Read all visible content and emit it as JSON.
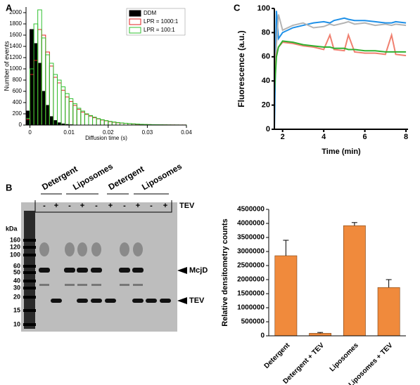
{
  "panels": [
    "A",
    "B",
    "C"
  ],
  "gel": {
    "groups": [
      "Detergent",
      "Liposomes",
      "Detergent",
      "Liposomes"
    ],
    "lanes": [
      "-",
      "+",
      "-",
      "+",
      "-",
      "+",
      "-",
      "+",
      "-",
      "+"
    ],
    "enzyme": "TEV",
    "unit": "kDa",
    "ladder": [
      "160",
      "120",
      "100",
      "60",
      "50",
      "40",
      "30",
      "20",
      "15",
      "10"
    ],
    "bands": [
      "McjD",
      "TEV"
    ]
  },
  "chart_data": [
    {
      "type": "histogram",
      "xlabel": "Diffusion time (s)",
      "ylabel": "Number of events",
      "bins": [
        -0.001,
        0,
        0.001,
        0.002,
        0.003,
        0.004,
        0.005,
        0.006,
        0.007,
        0.008,
        0.009,
        0.01,
        0.011,
        0.012,
        0.013,
        0.014,
        0.015,
        0.016,
        0.017,
        0.018,
        0.019,
        0.02,
        0.021,
        0.022,
        0.023,
        0.024,
        0.025,
        0.026,
        0.027,
        0.028,
        0.029,
        0.03,
        0.031,
        0.032,
        0.033,
        0.034,
        0.035,
        0.036,
        0.037,
        0.038,
        0.039,
        0.04
      ],
      "series": [
        {
          "name": "DDM",
          "color": "#000000",
          "style": "filled",
          "values": [
            250,
            1700,
            1450,
            1100,
            600,
            350,
            150,
            80,
            40,
            20,
            10,
            5,
            0,
            0,
            0,
            0,
            0,
            0,
            0,
            0,
            0,
            0,
            0,
            0,
            0,
            0,
            0,
            0,
            0,
            0,
            0,
            0,
            0,
            0,
            0,
            0,
            0,
            0,
            0,
            0,
            0
          ]
        },
        {
          "name": "LPR = 1000:1",
          "color": "#e02020",
          "style": "outline",
          "values": [
            100,
            900,
            1150,
            1700,
            1600,
            1300,
            1050,
            850,
            750,
            620,
            500,
            420,
            350,
            280,
            230,
            190,
            160,
            130,
            110,
            90,
            75,
            60,
            50,
            40,
            35,
            30,
            25,
            20,
            15,
            12,
            10,
            8,
            6,
            5,
            4,
            3,
            2,
            2,
            1,
            1,
            1
          ]
        },
        {
          "name": "LPR = 100:1",
          "color": "#30c030",
          "style": "outline",
          "values": [
            120,
            1000,
            1800,
            2050,
            1550,
            1250,
            1100,
            900,
            800,
            680,
            560,
            470,
            380,
            300,
            250,
            200,
            170,
            140,
            115,
            95,
            80,
            65,
            55,
            45,
            38,
            32,
            27,
            22,
            18,
            14,
            11,
            9,
            7,
            6,
            5,
            4,
            3,
            2,
            2,
            1,
            1
          ]
        }
      ],
      "xlim": [
        -0.001,
        0.04
      ],
      "xticks": [
        0,
        0.01,
        0.02,
        0.03,
        0.04
      ],
      "ylim": [
        0,
        2100
      ],
      "yticks": [
        0,
        200,
        400,
        600,
        800,
        1000,
        1200,
        1400,
        1600,
        1800,
        2000
      ],
      "legend": "upper right"
    },
    {
      "type": "line",
      "xlabel": "Time (min)",
      "ylabel": "Fluorescence (a.u.)",
      "x": [
        1.6,
        1.7,
        1.8,
        2,
        2.5,
        3,
        3.5,
        4,
        4.3,
        4.5,
        5,
        5.2,
        5.5,
        6,
        6.5,
        7,
        7.3,
        7.5,
        8
      ],
      "series": [
        {
          "color": "#1e90e8",
          "values": [
            0,
            98,
            75,
            80,
            84,
            86,
            88,
            89,
            88,
            90,
            92,
            91,
            90,
            90,
            89,
            88,
            88,
            89,
            88
          ]
        },
        {
          "color": "#b4b4b4",
          "values": [
            40,
            70,
            95,
            82,
            86,
            88,
            84,
            85,
            87,
            86,
            88,
            89,
            87,
            88,
            86,
            87,
            86,
            87,
            86
          ]
        },
        {
          "color": "#f08070",
          "values": [
            40,
            62,
            68,
            72,
            71,
            69,
            68,
            66,
            78,
            66,
            65,
            78,
            64,
            63,
            63,
            62,
            78,
            62,
            61
          ]
        },
        {
          "color": "#30b030",
          "values": [
            30,
            60,
            68,
            73,
            72,
            70,
            69,
            68,
            68,
            67,
            67,
            66,
            66,
            65,
            65,
            64,
            64,
            64,
            64
          ]
        }
      ],
      "xlim": [
        1.6,
        8.1
      ],
      "xticks": [
        2,
        4,
        6,
        8
      ],
      "ylim": [
        0,
        100
      ],
      "yticks": [
        0,
        20,
        40,
        60,
        80,
        100
      ]
    },
    {
      "type": "bar",
      "ylabel": "Relative densitometry counts",
      "categories": [
        "Detergent",
        "Detergent + TEV",
        "Liposomes",
        "Liposomes + TEV"
      ],
      "values": [
        2850000,
        90000,
        3920000,
        1720000
      ],
      "errors": [
        550000,
        30000,
        110000,
        280000
      ],
      "color": "#f08a3c",
      "ylim": [
        0,
        4500000
      ],
      "yticks": [
        0,
        500000,
        1000000,
        1500000,
        2000000,
        2500000,
        3000000,
        3500000,
        4000000,
        4500000
      ]
    }
  ]
}
